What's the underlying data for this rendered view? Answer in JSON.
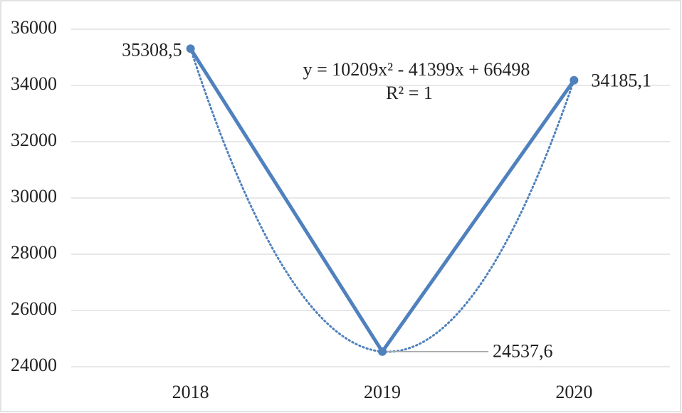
{
  "chart_data": {
    "type": "line",
    "categories": [
      "2018",
      "2019",
      "2020"
    ],
    "values": [
      35308.5,
      24537.6,
      34185.1
    ],
    "value_labels": [
      "35308,5",
      "24537,6",
      "34185,1"
    ],
    "color": "#4f81bd",
    "ylim": [
      24000,
      36000
    ],
    "yticks": [
      24000,
      26000,
      28000,
      30000,
      32000,
      34000,
      36000
    ],
    "grid": true,
    "trendline": "polynomial",
    "annotations": [
      "y = 10209x² - 41399x + 66498",
      "R² = 1"
    ]
  }
}
